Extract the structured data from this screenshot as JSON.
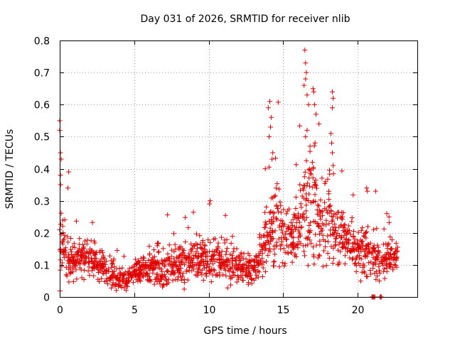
{
  "chart_data": {
    "type": "scatter",
    "title": "Day 031 of 2026, SRMTID for receiver nlib",
    "xlabel": "GPS time / hours",
    "ylabel": "SRMTID / TECUs",
    "xlim": [
      0,
      24
    ],
    "ylim": [
      0,
      0.8
    ],
    "xticks": [
      0,
      5,
      10,
      15,
      20
    ],
    "xtick_labels": [
      "0",
      "5",
      "10",
      "15",
      "20"
    ],
    "yticks": [
      0,
      0.1,
      0.2,
      0.3,
      0.4,
      0.5,
      0.6,
      0.7,
      0.8
    ],
    "ytick_labels": [
      "0",
      "0.1",
      "0.2",
      "0.3",
      "0.4",
      "0.5",
      "0.6",
      "0.7",
      "0.8"
    ],
    "grid": true,
    "marker": "+",
    "color": "#e00000",
    "envelope": {
      "description": "approximate typical band of SRMTID vs time (hours, center, spread)",
      "x": [
        0.0,
        0.5,
        1.0,
        2.0,
        3.0,
        4.0,
        4.5,
        5.0,
        6.0,
        7.0,
        8.0,
        9.0,
        10.0,
        11.0,
        12.0,
        13.0,
        13.5,
        14.0,
        14.5,
        15.0,
        15.5,
        16.0,
        16.5,
        17.0,
        17.5,
        18.0,
        18.5,
        19.0,
        19.5,
        20.0,
        20.5,
        21.0,
        21.5,
        22.0,
        22.7
      ],
      "center": [
        0.18,
        0.13,
        0.12,
        0.12,
        0.09,
        0.06,
        0.05,
        0.07,
        0.09,
        0.09,
        0.1,
        0.11,
        0.12,
        0.11,
        0.09,
        0.08,
        0.13,
        0.2,
        0.24,
        0.19,
        0.17,
        0.2,
        0.28,
        0.3,
        0.24,
        0.22,
        0.2,
        0.2,
        0.17,
        0.14,
        0.15,
        0.12,
        0.1,
        0.13,
        0.12
      ],
      "spread": [
        0.09,
        0.06,
        0.05,
        0.05,
        0.04,
        0.03,
        0.02,
        0.03,
        0.04,
        0.05,
        0.05,
        0.05,
        0.06,
        0.05,
        0.04,
        0.04,
        0.06,
        0.1,
        0.12,
        0.07,
        0.06,
        0.08,
        0.14,
        0.15,
        0.1,
        0.09,
        0.08,
        0.07,
        0.06,
        0.06,
        0.07,
        0.05,
        0.04,
        0.05,
        0.04
      ]
    },
    "notable_points": [
      {
        "x": 0.0,
        "y": 0.55
      },
      {
        "x": 0.0,
        "y": 0.52
      },
      {
        "x": 0.05,
        "y": 0.45
      },
      {
        "x": 0.1,
        "y": 0.43
      },
      {
        "x": 0.05,
        "y": 0.38
      },
      {
        "x": 0.6,
        "y": 0.39
      },
      {
        "x": 0.55,
        "y": 0.34
      },
      {
        "x": 10.1,
        "y": 0.3
      },
      {
        "x": 10.05,
        "y": 0.29
      },
      {
        "x": 14.1,
        "y": 0.61
      },
      {
        "x": 14.0,
        "y": 0.59
      },
      {
        "x": 14.2,
        "y": 0.56
      },
      {
        "x": 14.15,
        "y": 0.53
      },
      {
        "x": 14.05,
        "y": 0.5
      },
      {
        "x": 14.3,
        "y": 0.45
      },
      {
        "x": 14.25,
        "y": 0.43
      },
      {
        "x": 13.8,
        "y": 0.4
      },
      {
        "x": 16.45,
        "y": 0.77
      },
      {
        "x": 16.5,
        "y": 0.73
      },
      {
        "x": 16.55,
        "y": 0.7
      },
      {
        "x": 16.5,
        "y": 0.68
      },
      {
        "x": 16.4,
        "y": 0.66
      },
      {
        "x": 16.6,
        "y": 0.63
      },
      {
        "x": 16.7,
        "y": 0.6
      },
      {
        "x": 17.0,
        "y": 0.65
      },
      {
        "x": 17.05,
        "y": 0.64
      },
      {
        "x": 17.1,
        "y": 0.6
      },
      {
        "x": 17.2,
        "y": 0.57
      },
      {
        "x": 17.4,
        "y": 0.54
      },
      {
        "x": 16.6,
        "y": 0.52
      },
      {
        "x": 16.5,
        "y": 0.5
      },
      {
        "x": 16.8,
        "y": 0.47
      },
      {
        "x": 18.3,
        "y": 0.64
      },
      {
        "x": 18.35,
        "y": 0.62
      },
      {
        "x": 18.3,
        "y": 0.59
      },
      {
        "x": 18.2,
        "y": 0.51
      },
      {
        "x": 18.25,
        "y": 0.48
      },
      {
        "x": 18.3,
        "y": 0.45
      },
      {
        "x": 18.35,
        "y": 0.41
      },
      {
        "x": 20.6,
        "y": 0.34
      },
      {
        "x": 20.65,
        "y": 0.33
      },
      {
        "x": 21.2,
        "y": 0.33
      },
      {
        "x": 21.95,
        "y": 0.26
      },
      {
        "x": 22.1,
        "y": 0.25
      },
      {
        "x": 21.45,
        "y": 0.05
      },
      {
        "x": 20.95,
        "y": 0.0
      },
      {
        "x": 21.0,
        "y": 0.0
      },
      {
        "x": 21.05,
        "y": 0.0
      },
      {
        "x": 21.1,
        "y": 0.0
      },
      {
        "x": 21.15,
        "y": 0.0
      },
      {
        "x": 21.5,
        "y": 0.0
      },
      {
        "x": 21.55,
        "y": 0.0
      },
      {
        "x": 21.6,
        "y": 0.0
      }
    ]
  }
}
